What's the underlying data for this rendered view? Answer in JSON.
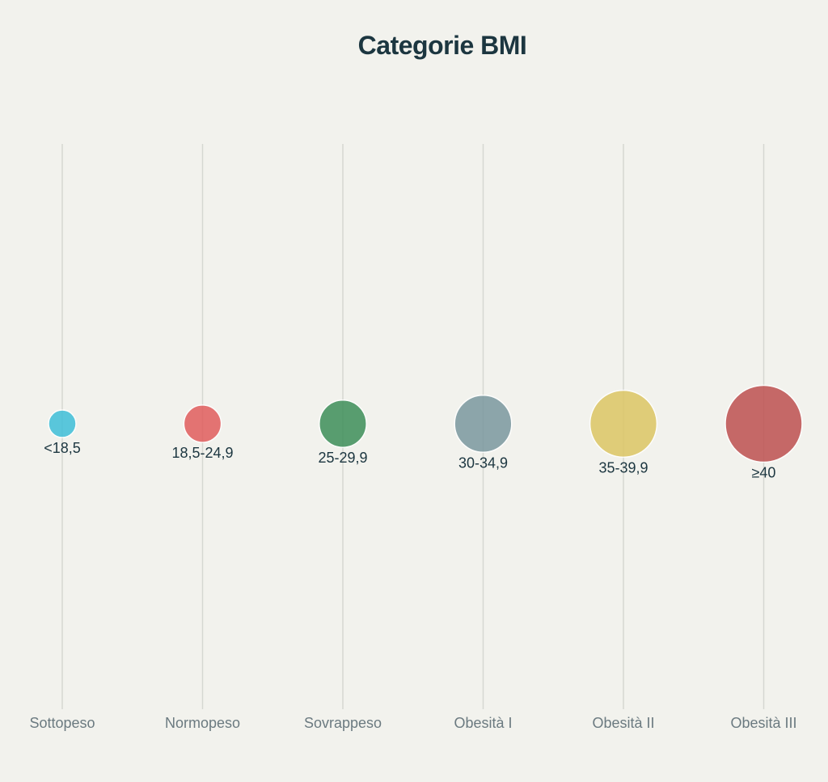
{
  "chart_data": {
    "type": "scatter",
    "title": "Categorie BMI",
    "xlabel": "",
    "ylabel": "",
    "categories": [
      "Sottopeso",
      "Normopeso",
      "Sovrappeso",
      "Obesità I",
      "Obesità II",
      "Obesità III"
    ],
    "values": [
      1,
      2,
      3,
      4,
      5,
      6
    ],
    "labels": [
      "<18,5",
      "18,5-24,9",
      "25-29,9",
      "30-34,9",
      "35-39,9",
      "≥40"
    ],
    "colors": [
      "#3fbfd8",
      "#e15d5d",
      "#3e8f5a",
      "#7b989f",
      "#dcc664",
      "#be5150"
    ],
    "y_position": "center",
    "grid": true,
    "legend": "none"
  }
}
